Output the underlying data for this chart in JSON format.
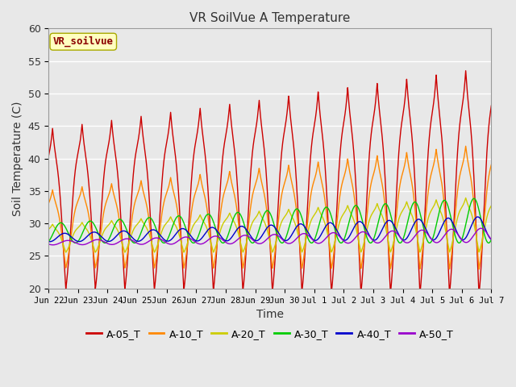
{
  "title": "VR SoilVue A Temperature",
  "xlabel": "Time",
  "ylabel": "Soil Temperature (C)",
  "ylim": [
    20,
    60
  ],
  "background_color": "#e8e8e8",
  "plot_bg_color": "#e8e8e8",
  "annotation_text": "VR_soilvue",
  "annotation_color": "#8b0000",
  "annotation_bg": "#ffffc0",
  "series": [
    {
      "label": "A-05_T",
      "color": "#cc0000"
    },
    {
      "label": "A-10_T",
      "color": "#ff8800"
    },
    {
      "label": "A-20_T",
      "color": "#cccc00"
    },
    {
      "label": "A-30_T",
      "color": "#00cc00"
    },
    {
      "label": "A-40_T",
      "color": "#0000cc"
    },
    {
      "label": "A-50_T",
      "color": "#9900cc"
    }
  ],
  "xtick_labels": [
    "Jun 22",
    "Jun 23",
    "Jun 24",
    "Jun 25",
    "Jun 26",
    "Jun 27",
    "Jun 28",
    "Jun 29",
    "Jun 30",
    "Jul 1",
    "Jul 2",
    "Jul 3",
    "Jul 4",
    "Jul 5",
    "Jul 6",
    "Jul 7"
  ],
  "num_days": 15,
  "points_per_day": 240
}
